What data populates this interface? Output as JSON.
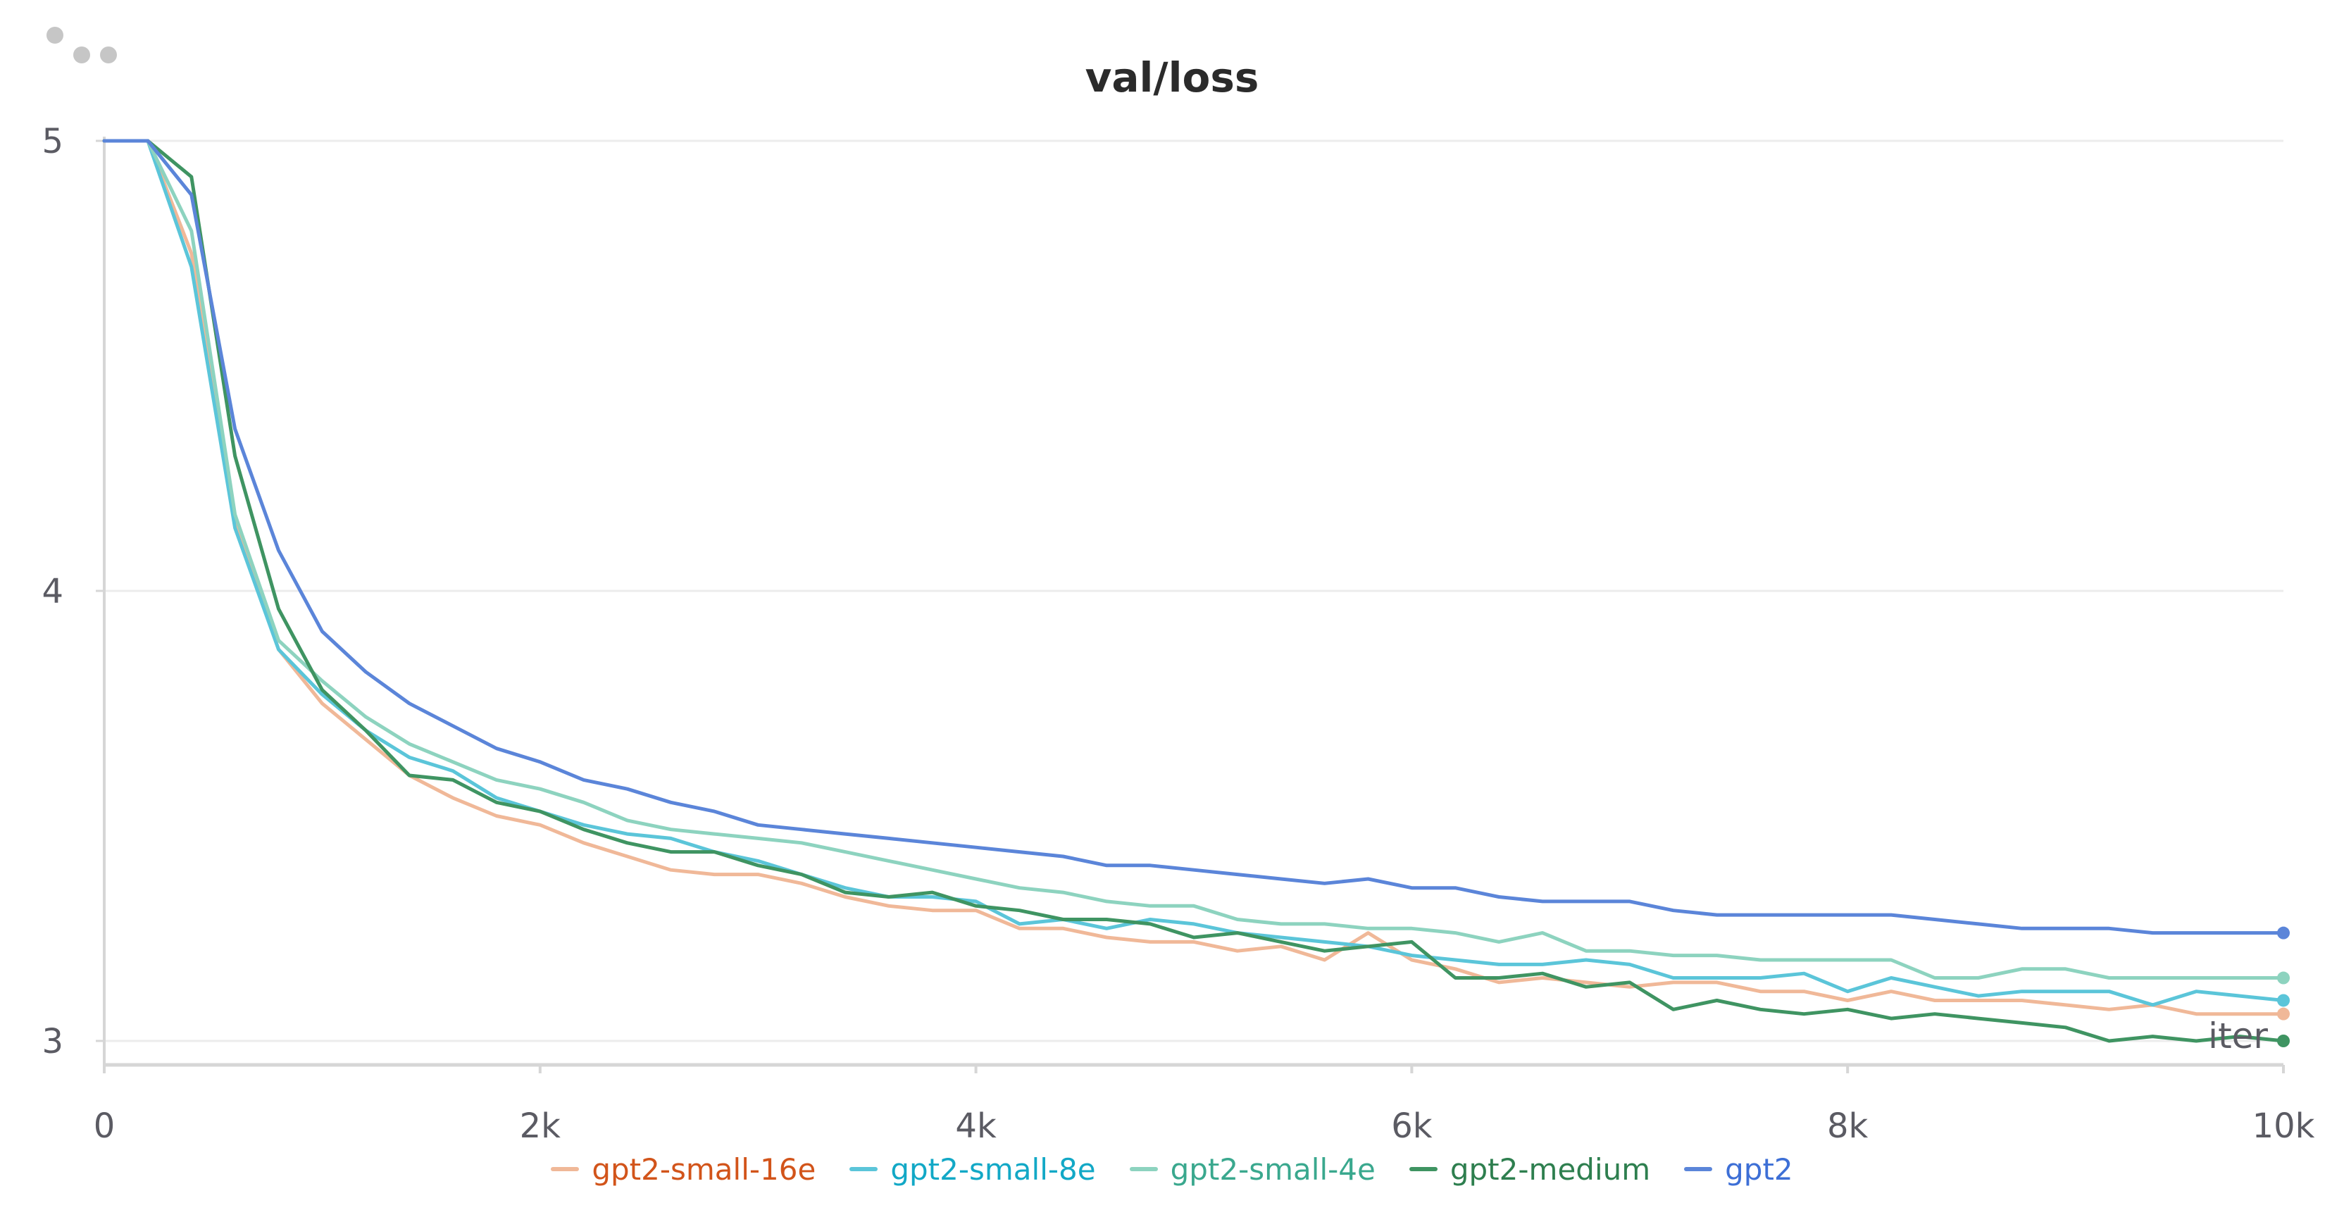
{
  "panel": {
    "title": "val/loss",
    "menu_icon": "ellipsis-icon"
  },
  "chart_data": {
    "type": "line",
    "title": "val/loss",
    "xlabel": "iter",
    "ylabel": "",
    "xlim": [
      0,
      10000
    ],
    "ylim": [
      2.95,
      5.0
    ],
    "xticks": [
      0,
      2000,
      4000,
      6000,
      8000,
      10000
    ],
    "xtick_labels": [
      "0",
      "2k",
      "4k",
      "6k",
      "8k",
      "10k"
    ],
    "yticks": [
      3,
      4,
      5
    ],
    "ytick_labels": [
      "3",
      "4",
      "5"
    ],
    "grid": true,
    "legend_position": "bottom",
    "x": [
      0,
      200,
      400,
      600,
      800,
      1000,
      1200,
      1400,
      1600,
      1800,
      2000,
      2200,
      2400,
      2600,
      2800,
      3000,
      3200,
      3400,
      3600,
      3800,
      4000,
      4200,
      4400,
      4600,
      4800,
      5000,
      5200,
      5400,
      5600,
      5800,
      6000,
      6200,
      6400,
      6600,
      6800,
      7000,
      7200,
      7400,
      7600,
      7800,
      8000,
      8200,
      8400,
      8600,
      8800,
      9000,
      9200,
      9400,
      9600,
      9800,
      10000
    ],
    "series": [
      {
        "name": "gpt2-small-16e",
        "color": "#f0b898",
        "label_color": "#d2541a",
        "values": [
          5.0,
          5.0,
          4.75,
          4.15,
          3.87,
          3.75,
          3.67,
          3.59,
          3.54,
          3.5,
          3.48,
          3.44,
          3.41,
          3.38,
          3.37,
          3.37,
          3.35,
          3.32,
          3.3,
          3.29,
          3.29,
          3.25,
          3.25,
          3.23,
          3.22,
          3.22,
          3.2,
          3.21,
          3.18,
          3.24,
          3.18,
          3.16,
          3.13,
          3.14,
          3.13,
          3.12,
          3.13,
          3.13,
          3.11,
          3.11,
          3.09,
          3.11,
          3.09,
          3.09,
          3.09,
          3.08,
          3.07,
          3.08,
          3.06,
          3.06,
          3.06
        ]
      },
      {
        "name": "gpt2-small-8e",
        "color": "#5bc5d9",
        "label_color": "#12a8c6",
        "values": [
          5.0,
          5.0,
          4.72,
          4.14,
          3.87,
          3.77,
          3.69,
          3.63,
          3.6,
          3.54,
          3.51,
          3.48,
          3.46,
          3.45,
          3.42,
          3.4,
          3.37,
          3.34,
          3.32,
          3.32,
          3.31,
          3.26,
          3.27,
          3.25,
          3.27,
          3.26,
          3.24,
          3.23,
          3.22,
          3.21,
          3.19,
          3.18,
          3.17,
          3.17,
          3.18,
          3.17,
          3.14,
          3.14,
          3.14,
          3.15,
          3.11,
          3.14,
          3.12,
          3.1,
          3.11,
          3.11,
          3.11,
          3.08,
          3.11,
          3.1,
          3.09
        ]
      },
      {
        "name": "gpt2-small-4e",
        "color": "#8dd3bf",
        "label_color": "#3aa88e",
        "values": [
          5.0,
          5.0,
          4.8,
          4.17,
          3.89,
          3.8,
          3.72,
          3.66,
          3.62,
          3.58,
          3.56,
          3.53,
          3.49,
          3.47,
          3.46,
          3.45,
          3.44,
          3.42,
          3.4,
          3.38,
          3.36,
          3.34,
          3.33,
          3.31,
          3.3,
          3.3,
          3.27,
          3.26,
          3.26,
          3.25,
          3.25,
          3.24,
          3.22,
          3.24,
          3.2,
          3.2,
          3.19,
          3.19,
          3.18,
          3.18,
          3.18,
          3.18,
          3.14,
          3.14,
          3.16,
          3.16,
          3.14,
          3.14,
          3.14,
          3.14,
          3.14
        ]
      },
      {
        "name": "gpt2-medium",
        "color": "#3f9462",
        "label_color": "#2e7f4f",
        "values": [
          5.0,
          5.0,
          4.92,
          4.3,
          3.96,
          3.78,
          3.69,
          3.59,
          3.58,
          3.53,
          3.51,
          3.47,
          3.44,
          3.42,
          3.42,
          3.39,
          3.37,
          3.33,
          3.32,
          3.33,
          3.3,
          3.29,
          3.27,
          3.27,
          3.26,
          3.23,
          3.24,
          3.22,
          3.2,
          3.21,
          3.22,
          3.14,
          3.14,
          3.15,
          3.12,
          3.13,
          3.07,
          3.09,
          3.07,
          3.06,
          3.07,
          3.05,
          3.06,
          3.05,
          3.04,
          3.03,
          3.0,
          3.01,
          3.0,
          3.01,
          3.0
        ]
      },
      {
        "name": "gpt2",
        "color": "#5b85d9",
        "label_color": "#3d6fd6",
        "values": [
          5.0,
          5.0,
          4.88,
          4.36,
          4.09,
          3.91,
          3.82,
          3.75,
          3.7,
          3.65,
          3.62,
          3.58,
          3.56,
          3.53,
          3.51,
          3.48,
          3.47,
          3.46,
          3.45,
          3.44,
          3.43,
          3.42,
          3.41,
          3.39,
          3.39,
          3.38,
          3.37,
          3.36,
          3.35,
          3.36,
          3.34,
          3.34,
          3.32,
          3.31,
          3.31,
          3.31,
          3.29,
          3.28,
          3.28,
          3.28,
          3.28,
          3.28,
          3.27,
          3.26,
          3.25,
          3.25,
          3.25,
          3.24,
          3.24,
          3.24,
          3.24
        ]
      }
    ]
  }
}
